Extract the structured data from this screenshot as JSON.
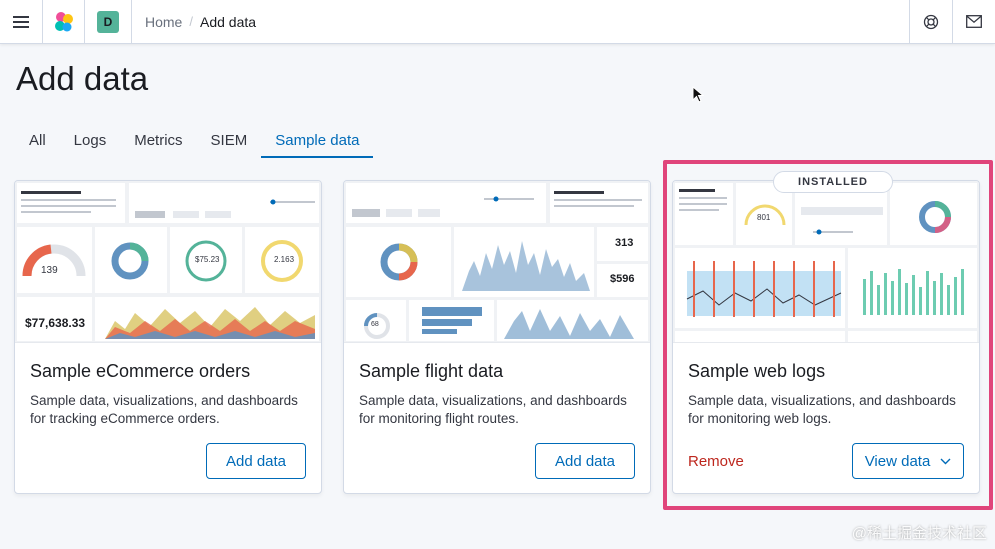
{
  "topbar": {
    "space_initial": "D",
    "breadcrumb": {
      "home": "Home",
      "separator": "/",
      "current": "Add data"
    },
    "icons": {
      "menu": "menu-icon",
      "logo": "kibana-logo",
      "help": "help-icon",
      "mail": "mail-icon"
    }
  },
  "page": {
    "title": "Add data"
  },
  "tabs": [
    {
      "label": "All",
      "active": false
    },
    {
      "label": "Logs",
      "active": false
    },
    {
      "label": "Metrics",
      "active": false
    },
    {
      "label": "SIEM",
      "active": false
    },
    {
      "label": "Sample data",
      "active": true
    }
  ],
  "cards": [
    {
      "title": "Sample eCommerce orders",
      "description": "Sample data, visualizations, and dashboards for tracking eCommerce orders.",
      "button": "Add data",
      "thumb": {
        "kpi": "$77,638.33",
        "gauge": "139",
        "stat1": "$75.23",
        "stat2": "2.163"
      }
    },
    {
      "title": "Sample flight data",
      "description": "Sample data, visualizations, and dashboards for monitoring flight routes.",
      "button": "Add data",
      "thumb": {
        "stat1": "313",
        "stat2": "$596",
        "gauge": "68"
      }
    },
    {
      "title": "Sample web logs",
      "description": "Sample data, visualizations, and dashboards for monitoring web logs.",
      "badge": "INSTALLED",
      "remove": "Remove",
      "button": "View data",
      "thumb": {
        "gauge": "801"
      }
    }
  ],
  "watermark": "@稀土掘金技术社区",
  "colors": {
    "accent": "#006bb8",
    "danger": "#bd271e",
    "highlight": "#e0457b",
    "space": "#54b399"
  }
}
